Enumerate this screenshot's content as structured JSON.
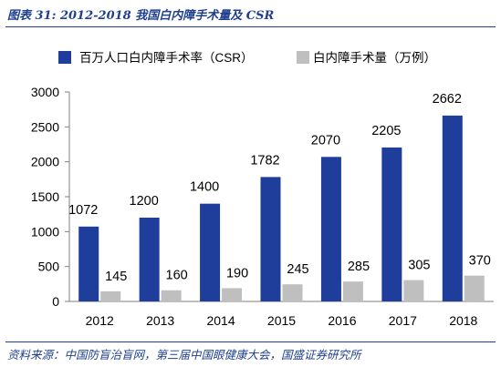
{
  "figure": {
    "title": "图表 31:  2012-2018 我国白内障手术量及 CSR",
    "source": "资料来源：中国防盲治盲网，第三届中国眼健康大会，国盛证券研究所"
  },
  "colors": {
    "csr": "#1f3d9b",
    "volume": "#bfbfbf",
    "brand_blue": "#1f3f8f"
  },
  "chart_data": {
    "type": "bar",
    "categories": [
      "2012",
      "2013",
      "2014",
      "2015",
      "2016",
      "2017",
      "2018"
    ],
    "series": [
      {
        "name": "百万人口白内障手术率（CSR）",
        "values": [
          1072,
          1200,
          1400,
          1782,
          2070,
          2205,
          2662
        ]
      },
      {
        "name": "白内障手术量（万例）",
        "values": [
          145,
          160,
          190,
          245,
          285,
          305,
          370
        ]
      }
    ],
    "ylim": [
      0,
      3000
    ],
    "yticks": [
      "0",
      "500",
      "1000",
      "1500",
      "2000",
      "2500",
      "3000"
    ],
    "legend_position": "top",
    "grid": false,
    "xlabel": "",
    "ylabel": ""
  }
}
